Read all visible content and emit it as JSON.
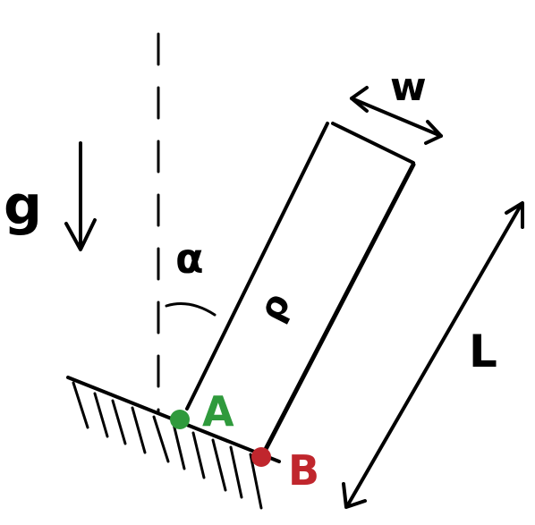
{
  "labels": {
    "gravity": "g",
    "angle": "α",
    "width": "w",
    "length": "L",
    "body_text": "ρ",
    "point_a": "A",
    "point_b": "B"
  },
  "colors": {
    "ink": "#000000",
    "point_a": "#2f9a3c",
    "point_b": "#c0262d"
  }
}
